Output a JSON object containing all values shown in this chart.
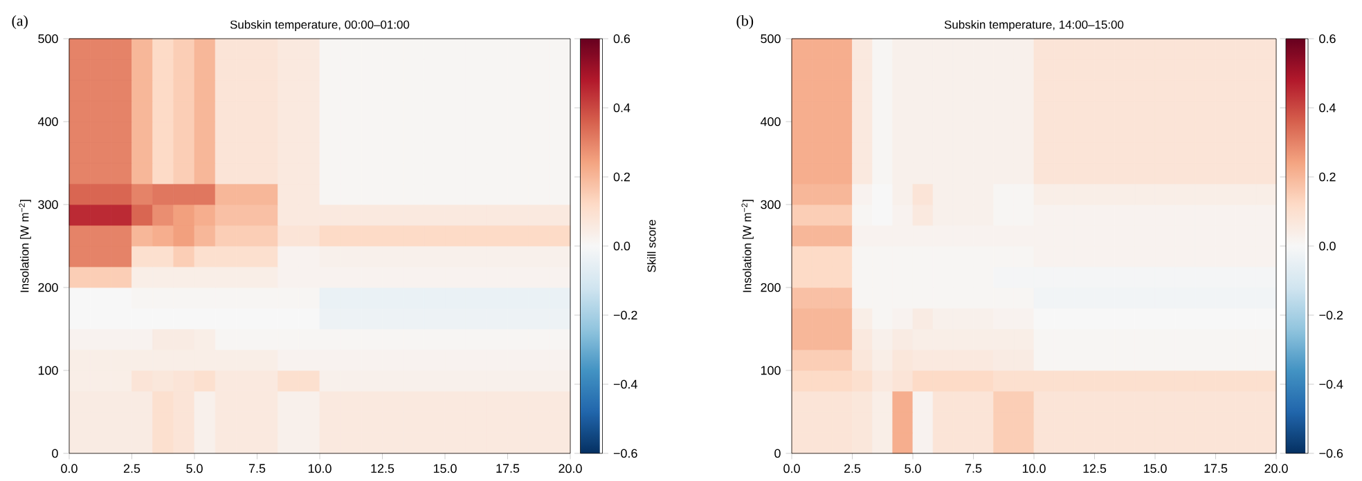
{
  "chart_data": [
    {
      "type": "heatmap",
      "title": "Subskin temperature, 00:00–01:00",
      "ylabel": "Insolation [W m$^{−2}$]",
      "clabel": "Skill score",
      "annotations": [
        "(a)"
      ],
      "xlim": [
        0,
        20
      ],
      "xticks": [
        {
          "value": 0,
          "label": "0.0"
        },
        2.5,
        {
          "value": 5,
          "label": "5.0"
        },
        7.5,
        {
          "value": 10,
          "label": "10.0"
        },
        12.5,
        {
          "value": 15,
          "label": "15.0"
        },
        17.5,
        {
          "value": 20,
          "label": "20.0"
        }
      ],
      "ylim": [
        0,
        500
      ],
      "yticks": [
        0,
        100,
        200,
        300,
        400,
        500
      ],
      "clim": [
        -0.6,
        0.6
      ],
      "cticks": [
        {
          "value": -0.6,
          "label": "−0.6"
        },
        {
          "value": -0.4,
          "label": "−0.4"
        },
        {
          "value": -0.2,
          "label": "−0.2"
        },
        {
          "value": 0,
          "label": "0.0"
        },
        0.2,
        0.4,
        0.6
      ],
      "x": [
        0.4167,
        1.25,
        2.0833,
        2.9167,
        3.75,
        4.5833,
        5.4167,
        6.25,
        7.0833,
        7.9167,
        8.75,
        9.5833,
        10.4167,
        11.25,
        12.0833,
        12.9167,
        13.75,
        14.5833,
        15.4167,
        16.25,
        17.0833,
        17.9167,
        18.75,
        19.5833
      ],
      "y": [
        487.5,
        462.5,
        437.5,
        412.5,
        387.5,
        362.5,
        337.5,
        312.5,
        287.5,
        262.5,
        237.5,
        212.5,
        187.5,
        162.5,
        137.5,
        112.5,
        87.5,
        62.5,
        37.5,
        12.5
      ],
      "cells": [
        [
          0.3,
          0.3,
          0.3,
          0.2,
          0.12,
          0.15,
          0.2,
          0.08,
          0.08,
          0.08,
          0.06,
          0.06,
          0.01,
          0.01,
          0.01,
          0.01,
          0.01,
          0.01,
          0.01,
          0.01,
          0.01,
          0.01,
          0.01,
          0.01
        ],
        [
          0.3,
          0.3,
          0.3,
          0.2,
          0.12,
          0.15,
          0.2,
          0.08,
          0.08,
          0.08,
          0.06,
          0.06,
          0.01,
          0.01,
          0.01,
          0.01,
          0.01,
          0.01,
          0.01,
          0.01,
          0.01,
          0.01,
          0.01,
          0.01
        ],
        [
          0.3,
          0.3,
          0.3,
          0.2,
          0.12,
          0.15,
          0.2,
          0.08,
          0.08,
          0.08,
          0.06,
          0.06,
          0.01,
          0.01,
          0.01,
          0.01,
          0.01,
          0.01,
          0.01,
          0.01,
          0.01,
          0.01,
          0.01,
          0.01
        ],
        [
          0.3,
          0.3,
          0.3,
          0.2,
          0.12,
          0.15,
          0.2,
          0.08,
          0.08,
          0.08,
          0.06,
          0.06,
          0.01,
          0.01,
          0.01,
          0.01,
          0.01,
          0.01,
          0.01,
          0.01,
          0.01,
          0.01,
          0.01,
          0.01
        ],
        [
          0.3,
          0.3,
          0.3,
          0.2,
          0.12,
          0.15,
          0.2,
          0.08,
          0.08,
          0.08,
          0.06,
          0.06,
          0.01,
          0.01,
          0.01,
          0.01,
          0.01,
          0.01,
          0.01,
          0.01,
          0.01,
          0.01,
          0.01,
          0.01
        ],
        [
          0.3,
          0.3,
          0.3,
          0.2,
          0.12,
          0.15,
          0.2,
          0.08,
          0.08,
          0.08,
          0.06,
          0.06,
          0.01,
          0.01,
          0.01,
          0.01,
          0.01,
          0.01,
          0.01,
          0.01,
          0.01,
          0.01,
          0.01,
          0.01
        ],
        [
          0.3,
          0.3,
          0.3,
          0.2,
          0.12,
          0.15,
          0.2,
          0.08,
          0.08,
          0.08,
          0.06,
          0.06,
          0.01,
          0.01,
          0.01,
          0.01,
          0.01,
          0.01,
          0.01,
          0.01,
          0.01,
          0.01,
          0.01,
          0.01
        ],
        [
          0.35,
          0.35,
          0.35,
          0.3,
          0.32,
          0.32,
          0.32,
          0.2,
          0.2,
          0.2,
          0.06,
          0.06,
          0.01,
          0.01,
          0.01,
          0.01,
          0.01,
          0.01,
          0.01,
          0.01,
          0.01,
          0.01,
          0.01,
          0.01
        ],
        [
          0.45,
          0.45,
          0.45,
          0.35,
          0.28,
          0.25,
          0.22,
          0.18,
          0.18,
          0.18,
          0.06,
          0.06,
          0.06,
          0.06,
          0.06,
          0.06,
          0.06,
          0.06,
          0.06,
          0.06,
          0.06,
          0.06,
          0.06,
          0.06
        ],
        [
          0.3,
          0.3,
          0.3,
          0.2,
          0.22,
          0.25,
          0.2,
          0.15,
          0.15,
          0.15,
          0.08,
          0.08,
          0.12,
          0.12,
          0.12,
          0.12,
          0.12,
          0.12,
          0.12,
          0.12,
          0.12,
          0.12,
          0.12,
          0.12
        ],
        [
          0.3,
          0.3,
          0.3,
          0.1,
          0.1,
          0.15,
          0.1,
          0.1,
          0.1,
          0.1,
          0.02,
          0.02,
          0.03,
          0.03,
          0.03,
          0.03,
          0.03,
          0.03,
          0.03,
          0.03,
          0.03,
          0.03,
          0.03,
          0.03
        ],
        [
          0.15,
          0.15,
          0.15,
          0.04,
          0.04,
          0.04,
          0.04,
          0.04,
          0.04,
          0.04,
          0.02,
          0.02,
          0.02,
          0.02,
          0.02,
          0.02,
          0.02,
          0.02,
          0.02,
          0.02,
          0.02,
          0.02,
          0.02,
          0.02
        ],
        [
          0,
          0,
          0,
          0.01,
          0.01,
          0.01,
          0.01,
          0.01,
          0.01,
          0.01,
          0.01,
          0.01,
          -0.04,
          -0.04,
          -0.04,
          -0.04,
          -0.04,
          -0.04,
          -0.04,
          -0.04,
          -0.04,
          -0.04,
          -0.04,
          -0.04
        ],
        [
          0,
          0,
          0,
          0,
          0,
          0,
          0,
          0,
          0,
          0,
          0,
          0,
          -0.03,
          -0.03,
          -0.03,
          -0.03,
          -0.03,
          -0.03,
          -0.03,
          -0.03,
          -0.03,
          -0.03,
          -0.03,
          -0.03
        ],
        [
          0.02,
          0.02,
          0.02,
          0.02,
          0.05,
          0.05,
          0.04,
          0.01,
          0.01,
          0.01,
          0.01,
          0.01,
          0.01,
          0.01,
          0.01,
          0.01,
          0.01,
          0.01,
          0.01,
          0.01,
          0.01,
          0.01,
          0.01,
          0.01
        ],
        [
          0.04,
          0.04,
          0.04,
          0.04,
          0.04,
          0.04,
          0.04,
          0.04,
          0.04,
          0.04,
          0.02,
          0.02,
          0.02,
          0.02,
          0.02,
          0.02,
          0.02,
          0.02,
          0.02,
          0.02,
          0.02,
          0.02,
          0.02,
          0.02
        ],
        [
          0.04,
          0.04,
          0.04,
          0.08,
          0.07,
          0.08,
          0.1,
          0.06,
          0.06,
          0.06,
          0.1,
          0.1,
          0.03,
          0.03,
          0.03,
          0.03,
          0.03,
          0.03,
          0.03,
          0.03,
          0.03,
          0.03,
          0.03,
          0.03
        ],
        [
          0.05,
          0.05,
          0.05,
          0.05,
          0.1,
          0.08,
          0.03,
          0.06,
          0.06,
          0.06,
          0.03,
          0.03,
          0.06,
          0.06,
          0.06,
          0.06,
          0.06,
          0.06,
          0.06,
          0.06,
          0.06,
          0.06,
          0.06,
          0.06
        ],
        [
          0.05,
          0.05,
          0.05,
          0.05,
          0.1,
          0.08,
          0.03,
          0.06,
          0.06,
          0.06,
          0.03,
          0.03,
          0.06,
          0.06,
          0.06,
          0.06,
          0.06,
          0.06,
          0.06,
          0.06,
          0.06,
          0.06,
          0.06,
          0.06
        ],
        [
          0.05,
          0.05,
          0.05,
          0.05,
          0.1,
          0.08,
          0.03,
          0.06,
          0.06,
          0.06,
          0.03,
          0.03,
          0.06,
          0.06,
          0.06,
          0.06,
          0.06,
          0.06,
          0.06,
          0.06,
          0.06,
          0.06,
          0.06,
          0.06
        ]
      ]
    },
    {
      "type": "heatmap",
      "title": "Subskin temperature, 14:00–15:00",
      "ylabel": "Insolation [W m$^{−2}$]",
      "annotations": [
        "(b)"
      ],
      "xlim": [
        0,
        20
      ],
      "xticks": [
        {
          "value": 0,
          "label": "0.0"
        },
        2.5,
        {
          "value": 5,
          "label": "5.0"
        },
        7.5,
        {
          "value": 10,
          "label": "10.0"
        },
        12.5,
        {
          "value": 15,
          "label": "15.0"
        },
        17.5,
        {
          "value": 20,
          "label": "20.0"
        }
      ],
      "ylim": [
        0,
        500
      ],
      "yticks": [
        0,
        100,
        200,
        300,
        400,
        500
      ],
      "clim": [
        -0.6,
        0.6
      ],
      "cticks": [
        {
          "value": -0.6,
          "label": "−0.6"
        },
        {
          "value": -0.4,
          "label": "−0.4"
        },
        {
          "value": -0.2,
          "label": "−0.2"
        },
        {
          "value": 0,
          "label": "0.0"
        },
        0.2,
        0.4,
        0.6
      ],
      "x": [
        0.4167,
        1.25,
        2.0833,
        2.9167,
        3.75,
        4.5833,
        5.4167,
        6.25,
        7.0833,
        7.9167,
        8.75,
        9.5833,
        10.4167,
        11.25,
        12.0833,
        12.9167,
        13.75,
        14.5833,
        15.4167,
        16.25,
        17.0833,
        17.9167,
        18.75,
        19.5833
      ],
      "y": [
        487.5,
        462.5,
        437.5,
        412.5,
        387.5,
        362.5,
        337.5,
        312.5,
        287.5,
        262.5,
        237.5,
        212.5,
        187.5,
        162.5,
        137.5,
        112.5,
        87.5,
        62.5,
        37.5,
        12.5
      ],
      "cells": [
        [
          0.22,
          0.22,
          0.22,
          0.06,
          0.01,
          0.03,
          0.03,
          0.03,
          0.03,
          0.03,
          0.03,
          0.03,
          0.08,
          0.08,
          0.08,
          0.08,
          0.08,
          0.08,
          0.08,
          0.08,
          0.08,
          0.08,
          0.08,
          0.08
        ],
        [
          0.22,
          0.22,
          0.22,
          0.06,
          0.01,
          0.03,
          0.03,
          0.03,
          0.03,
          0.03,
          0.03,
          0.03,
          0.08,
          0.08,
          0.08,
          0.08,
          0.08,
          0.08,
          0.08,
          0.08,
          0.08,
          0.08,
          0.08,
          0.08
        ],
        [
          0.22,
          0.22,
          0.22,
          0.06,
          0.01,
          0.03,
          0.03,
          0.03,
          0.03,
          0.03,
          0.03,
          0.03,
          0.08,
          0.08,
          0.08,
          0.08,
          0.08,
          0.08,
          0.08,
          0.08,
          0.08,
          0.08,
          0.08,
          0.08
        ],
        [
          0.22,
          0.22,
          0.22,
          0.06,
          0.01,
          0.03,
          0.03,
          0.03,
          0.03,
          0.03,
          0.03,
          0.03,
          0.08,
          0.08,
          0.08,
          0.08,
          0.08,
          0.08,
          0.08,
          0.08,
          0.08,
          0.08,
          0.08,
          0.08
        ],
        [
          0.22,
          0.22,
          0.22,
          0.06,
          0.01,
          0.03,
          0.03,
          0.03,
          0.03,
          0.03,
          0.03,
          0.03,
          0.08,
          0.08,
          0.08,
          0.08,
          0.08,
          0.08,
          0.08,
          0.08,
          0.08,
          0.08,
          0.08,
          0.08
        ],
        [
          0.22,
          0.22,
          0.22,
          0.06,
          0.01,
          0.03,
          0.03,
          0.03,
          0.03,
          0.03,
          0.03,
          0.03,
          0.08,
          0.08,
          0.08,
          0.08,
          0.08,
          0.08,
          0.08,
          0.08,
          0.08,
          0.08,
          0.08,
          0.08
        ],
        [
          0.22,
          0.22,
          0.22,
          0.06,
          0.01,
          0.03,
          0.03,
          0.03,
          0.03,
          0.03,
          0.03,
          0.03,
          0.08,
          0.08,
          0.08,
          0.08,
          0.08,
          0.08,
          0.08,
          0.08,
          0.08,
          0.08,
          0.08,
          0.08
        ],
        [
          0.2,
          0.2,
          0.2,
          0.02,
          0,
          0.03,
          0.08,
          0.03,
          0.03,
          0.03,
          0.01,
          0.01,
          0.04,
          0.04,
          0.04,
          0.04,
          0.04,
          0.04,
          0.04,
          0.04,
          0.04,
          0.04,
          0.04,
          0.04
        ],
        [
          0.15,
          0.15,
          0.15,
          0.01,
          0,
          0.02,
          0.06,
          0.03,
          0.03,
          0.03,
          0.01,
          0.01,
          0.02,
          0.02,
          0.02,
          0.02,
          0.02,
          0.02,
          0.02,
          0.02,
          0.02,
          0.02,
          0.02,
          0.02
        ],
        [
          0.2,
          0.2,
          0.2,
          0.02,
          0.02,
          0.02,
          0.02,
          0.02,
          0.02,
          0.02,
          0.02,
          0.02,
          0.02,
          0.02,
          0.02,
          0.02,
          0.02,
          0.02,
          0.02,
          0.02,
          0.02,
          0.02,
          0.02,
          0.02
        ],
        [
          0.12,
          0.12,
          0.12,
          0.01,
          0.01,
          0.01,
          0.01,
          0.01,
          0.01,
          0.01,
          0.01,
          0.01,
          0.02,
          0.02,
          0.02,
          0.02,
          0.02,
          0.02,
          0.02,
          0.02,
          0.02,
          0.02,
          0.02,
          0.02
        ],
        [
          0.12,
          0.12,
          0.12,
          0.01,
          0.01,
          0.01,
          0.01,
          0.01,
          0.01,
          0.01,
          -0.01,
          -0.01,
          -0.01,
          -0.01,
          -0.01,
          -0.01,
          -0.01,
          -0.01,
          -0.01,
          -0.01,
          -0.01,
          -0.01,
          -0.01,
          -0.01
        ],
        [
          0.18,
          0.18,
          0.18,
          0.01,
          0.01,
          0.01,
          0.01,
          0.01,
          0.01,
          0.01,
          0.01,
          0.01,
          -0.02,
          -0.02,
          -0.02,
          -0.02,
          -0.02,
          -0.02,
          -0.02,
          -0.02,
          -0.02,
          -0.02,
          -0.02,
          -0.02
        ],
        [
          0.2,
          0.2,
          0.2,
          0.04,
          0.01,
          0.02,
          0.05,
          0.03,
          0.03,
          0.03,
          0.02,
          0.02,
          0,
          0,
          0,
          0,
          0,
          0,
          0,
          0,
          0,
          0,
          0,
          0
        ],
        [
          0.2,
          0.2,
          0.2,
          0.06,
          0.03,
          0.05,
          0.04,
          0.04,
          0.04,
          0.04,
          0.04,
          0.04,
          0.01,
          0.01,
          0.01,
          0.01,
          0.01,
          0.01,
          0.01,
          0.01,
          0.01,
          0.01,
          0.01,
          0.01
        ],
        [
          0.15,
          0.15,
          0.15,
          0.07,
          0.04,
          0.07,
          0.06,
          0.06,
          0.06,
          0.06,
          0.05,
          0.05,
          0.01,
          0.01,
          0.01,
          0.01,
          0.01,
          0.01,
          0.01,
          0.01,
          0.01,
          0.01,
          0.01,
          0.01
        ],
        [
          0.12,
          0.12,
          0.12,
          0.1,
          0.06,
          0.08,
          0.12,
          0.12,
          0.12,
          0.12,
          0.1,
          0.1,
          0.1,
          0.1,
          0.1,
          0.1,
          0.1,
          0.1,
          0.1,
          0.1,
          0.1,
          0.1,
          0.1,
          0.1
        ],
        [
          0.08,
          0.08,
          0.08,
          0.07,
          0.04,
          0.22,
          0.02,
          0.08,
          0.08,
          0.08,
          0.15,
          0.15,
          0.08,
          0.08,
          0.08,
          0.08,
          0.08,
          0.08,
          0.08,
          0.08,
          0.08,
          0.08,
          0.08,
          0.08
        ],
        [
          0.08,
          0.08,
          0.08,
          0.07,
          0.04,
          0.22,
          0.02,
          0.08,
          0.08,
          0.08,
          0.15,
          0.15,
          0.08,
          0.08,
          0.08,
          0.08,
          0.08,
          0.08,
          0.08,
          0.08,
          0.08,
          0.08,
          0.08,
          0.08
        ],
        [
          0.08,
          0.08,
          0.08,
          0.07,
          0.04,
          0.22,
          0.02,
          0.08,
          0.08,
          0.08,
          0.15,
          0.15,
          0.08,
          0.08,
          0.08,
          0.08,
          0.08,
          0.08,
          0.08,
          0.08,
          0.08,
          0.08,
          0.08,
          0.08
        ]
      ]
    }
  ]
}
